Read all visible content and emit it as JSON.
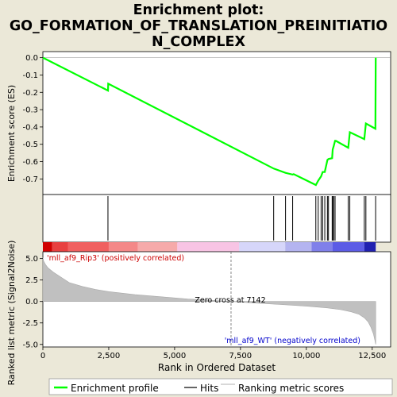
{
  "chart_data": {
    "type": "line",
    "title_lines": [
      "Enrichment plot:",
      "GO_FORMATION_OF_TRANSLATION_PREINITIATIO",
      "N_COMPLEX"
    ],
    "es_panel": {
      "ylabel": "Enrichment score (ES)",
      "ylim": [
        -0.79,
        0.035
      ],
      "yticks": [
        "0.0",
        "-0.1",
        "-0.2",
        "-0.3",
        "-0.4",
        "-0.5",
        "-0.6",
        "-0.7"
      ],
      "ytick_values": [
        0.0,
        -0.1,
        -0.2,
        -0.3,
        -0.4,
        -0.5,
        -0.6,
        -0.7
      ],
      "profile": {
        "name": "Enrichment profile",
        "color": "#00ff00",
        "x": [
          0,
          2470,
          2480,
          8760,
          9210,
          9480,
          9520,
          10360,
          10450,
          10560,
          10620,
          10700,
          10800,
          10840,
          10980,
          11000,
          11040,
          11090,
          11120,
          11590,
          11650,
          12200,
          12260,
          12620,
          12630,
          12634
        ],
        "y": [
          0.0,
          -0.19,
          -0.15,
          -0.64,
          -0.665,
          -0.675,
          -0.672,
          -0.735,
          -0.71,
          -0.685,
          -0.66,
          -0.66,
          -0.59,
          -0.585,
          -0.58,
          -0.53,
          -0.51,
          -0.48,
          -0.48,
          -0.52,
          -0.43,
          -0.47,
          -0.38,
          -0.41,
          -0.1,
          0.0
        ]
      }
    },
    "hits": {
      "name": "Hits",
      "positions": [
        2470,
        8760,
        9210,
        9480,
        10360,
        10450,
        10560,
        10620,
        10700,
        10800,
        10840,
        10980,
        11000,
        11040,
        11090,
        11590,
        11650,
        12200,
        12260,
        12630
      ]
    },
    "rank_bar": {
      "segments": [
        {
          "from": 0,
          "to": 350,
          "color": "#d00000"
        },
        {
          "from": 350,
          "to": 950,
          "color": "#e84040"
        },
        {
          "from": 950,
          "to": 2500,
          "color": "#f06060"
        },
        {
          "from": 2500,
          "to": 3600,
          "color": "#f48888"
        },
        {
          "from": 3600,
          "to": 5100,
          "color": "#f6aaaa"
        },
        {
          "from": 5100,
          "to": 7450,
          "color": "#f8c4e4"
        },
        {
          "from": 7450,
          "to": 9200,
          "color": "#d6d6fa"
        },
        {
          "from": 9200,
          "to": 10200,
          "color": "#b4b4f0"
        },
        {
          "from": 10200,
          "to": 11000,
          "color": "#8080ea"
        },
        {
          "from": 11000,
          "to": 12200,
          "color": "#5c5ce6"
        },
        {
          "from": 12200,
          "to": 12634,
          "color": "#2020b0"
        }
      ]
    },
    "metric_panel": {
      "name": "Ranking metric scores",
      "xlabel": "Rank in Ordered Dataset",
      "ylabel": "Ranked list metric (Signal2Noise)",
      "xlim": [
        0,
        13200
      ],
      "ylim": [
        -5.3,
        5.8
      ],
      "xticks": [
        "0",
        "2,500",
        "5,000",
        "7,500",
        "10,000",
        "12,500"
      ],
      "xtick_values": [
        0,
        2500,
        5000,
        7500,
        10000,
        12500
      ],
      "yticks": [
        "5.0",
        "2.5",
        "0.0",
        "-2.5",
        "-5.0"
      ],
      "ytick_values": [
        5.0,
        2.5,
        0.0,
        -2.5,
        -5.0
      ],
      "fill_color": "#c0c0c0",
      "zero_cross": 7142,
      "zero_cross_label": "Zero cross at 7142",
      "positive_label": "'mll_af9_Rip3' (positively correlated)",
      "negative_label": "'mll_af9_WT' (negatively correlated)",
      "positive_color": "#cc0000",
      "negative_color": "#0000cc",
      "metric_x": [
        0,
        30,
        100,
        200,
        400,
        700,
        1000,
        1500,
        2000,
        2500,
        3500,
        4500,
        5500,
        6500,
        7142,
        8000,
        9000,
        10000,
        10800,
        11300,
        11700,
        12000,
        12200,
        12350,
        12450,
        12550,
        12600,
        12634
      ],
      "metric_y": [
        5.1,
        4.7,
        4.3,
        3.9,
        3.4,
        2.8,
        2.2,
        1.75,
        1.4,
        1.15,
        0.8,
        0.55,
        0.3,
        0.12,
        0.0,
        -0.18,
        -0.35,
        -0.55,
        -0.75,
        -0.95,
        -1.2,
        -1.5,
        -1.9,
        -2.4,
        -3.0,
        -3.8,
        -4.5,
        -5.0
      ]
    },
    "legend": [
      {
        "label": "Enrichment profile",
        "color": "#00ff00"
      },
      {
        "label": "Hits",
        "color": "#000000"
      },
      {
        "label": "Ranking metric scores",
        "color": "#c0c0c0"
      }
    ]
  }
}
